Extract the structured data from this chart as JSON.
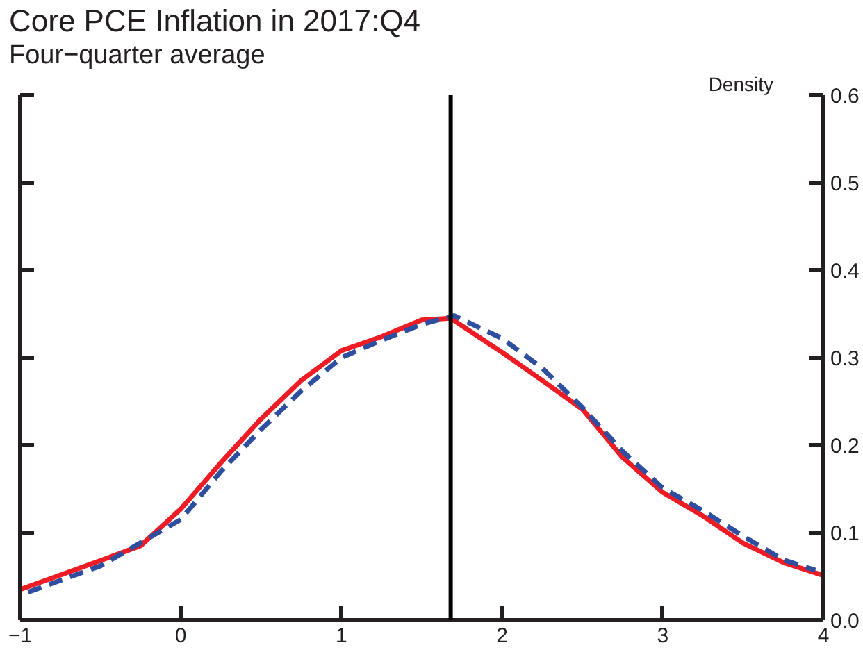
{
  "chart_data": {
    "type": "line",
    "title": "Core PCE Inflation in 2017:Q4",
    "subtitle": "Four−quarter average",
    "ylabel": "Density",
    "xlim": [
      -1,
      4
    ],
    "xticks": [
      {
        "value": -1,
        "label": "−1"
      },
      0,
      1,
      2,
      3,
      4
    ],
    "ylim": [
      0,
      0.6
    ],
    "yticks": [
      {
        "value": 0,
        "label": "0.0"
      },
      0.1,
      0.2,
      0.3,
      0.4,
      0.5,
      0.6
    ],
    "grid": false,
    "series": [
      {
        "color": "#ee1c25",
        "line_style": "solid",
        "x": [
          -1,
          -0.5,
          -0.25,
          0,
          0.25,
          0.5,
          0.75,
          1,
          1.25,
          1.5,
          1.68,
          2,
          2.25,
          2.5,
          2.75,
          3,
          3.25,
          3.5,
          3.75,
          4
        ],
        "values": [
          0.035,
          0.068,
          0.085,
          0.127,
          0.18,
          0.23,
          0.274,
          0.308,
          0.324,
          0.343,
          0.345,
          0.306,
          0.274,
          0.241,
          0.186,
          0.146,
          0.119,
          0.088,
          0.066,
          0.051
        ]
      },
      {
        "color": "#2e4fa0",
        "line_style": "dashed",
        "x": [
          -0.95,
          -0.5,
          0,
          0.25,
          0.5,
          0.75,
          1,
          1.25,
          1.5,
          1.7,
          2,
          2.25,
          2.5,
          2.75,
          3,
          3.25,
          3.5,
          3.75,
          3.95
        ],
        "values": [
          0.032,
          0.062,
          0.115,
          0.17,
          0.218,
          0.262,
          0.3,
          0.32,
          0.338,
          0.348,
          0.322,
          0.288,
          0.243,
          0.193,
          0.151,
          0.125,
          0.096,
          0.069,
          0.057
        ]
      }
    ],
    "ref_lines": [
      {
        "axis": "x",
        "value": 1.68,
        "color": "#000000"
      }
    ]
  }
}
